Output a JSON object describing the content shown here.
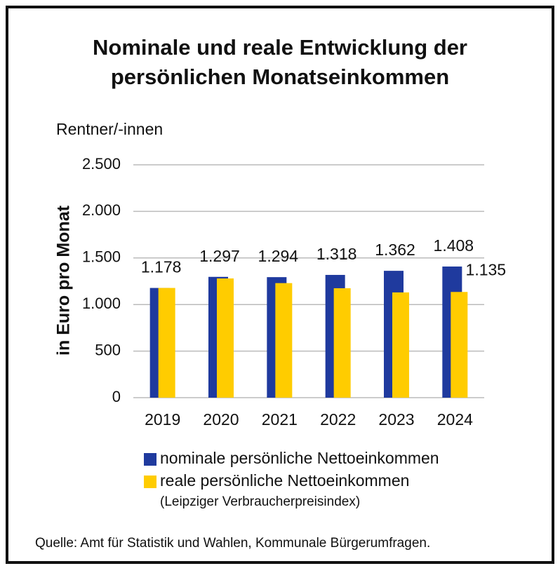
{
  "chart_data": {
    "type": "bar",
    "title": [
      "Nominale und reale Entwicklung der",
      "persönlichen Monatseinkommen"
    ],
    "subtitle": "Rentner/-innen",
    "ylabel": "in Euro pro Monat",
    "categories": [
      "2019",
      "2020",
      "2021",
      "2022",
      "2023",
      "2024"
    ],
    "series": [
      {
        "name": "nominale persönliche Nettoeinkommen",
        "color": "#1f3a9e",
        "values": [
          1178,
          1297,
          1294,
          1318,
          1362,
          1408
        ],
        "value_labels": [
          "1.178",
          "1.297",
          "1.294",
          "1.318",
          "1.362",
          "1.408"
        ]
      },
      {
        "name": "reale persönliche Nettoeinkommen",
        "color": "#ffcc00",
        "values": [
          1178,
          1280,
          1230,
          1175,
          1130,
          1135
        ],
        "value_labels": [
          null,
          null,
          null,
          null,
          null,
          "1.135"
        ]
      }
    ],
    "legend_note": "(Leipziger Verbraucherpreisindex)",
    "source": "Quelle: Amt für Statistik und Wahlen, Kommunale Bürgerumfragen.",
    "ylim": [
      0,
      2500
    ],
    "yticks": [
      0,
      500,
      {
        "value": 1000,
        "label": "1.000"
      },
      {
        "value": 1500,
        "label": "1.500"
      },
      {
        "value": 2000,
        "label": "2.000"
      },
      {
        "value": 2500,
        "label": "2.500"
      }
    ],
    "grid": true
  }
}
